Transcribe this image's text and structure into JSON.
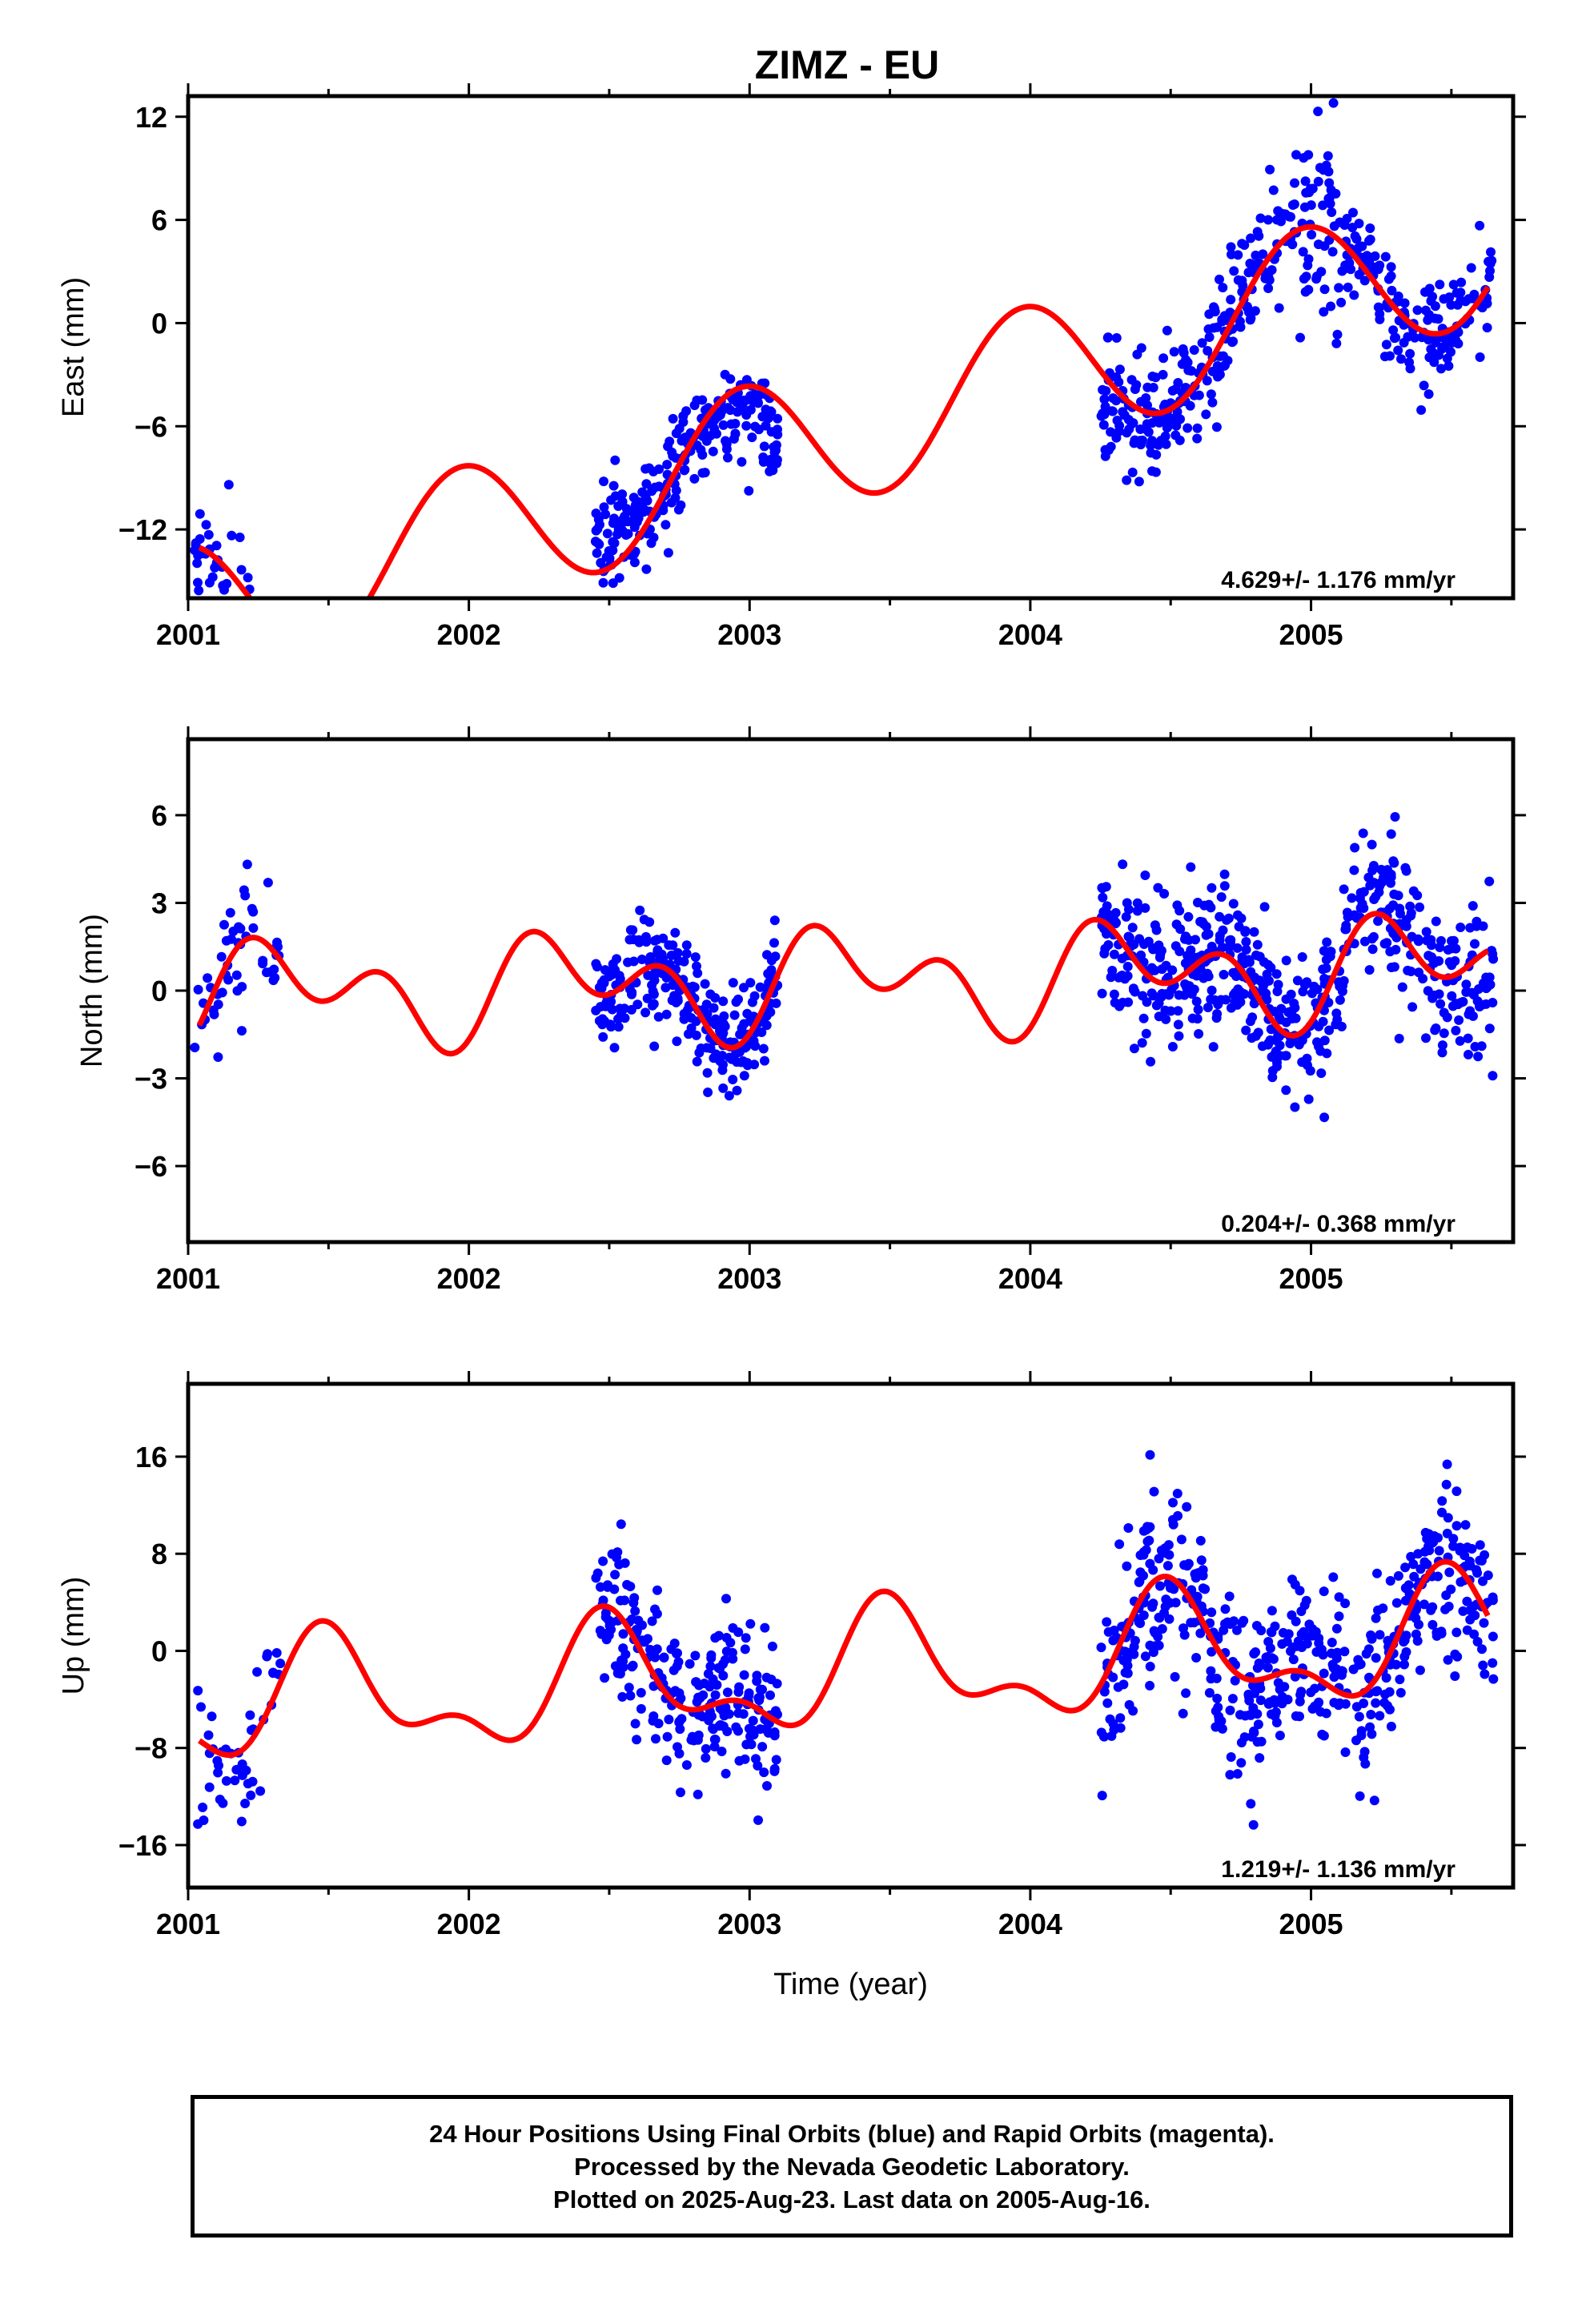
{
  "title": "ZIMZ - EU",
  "footer": {
    "line1": "24 Hour Positions Using Final Orbits (blue) and Rapid Orbits (magenta).",
    "line2": "Processed by the Nevada Geodetic Laboratory.",
    "line3": "Plotted on 2025-Aug-23. Last data on 2005-Aug-16."
  },
  "colors": {
    "data_points": "#0000ff",
    "model_fit": "#ff0000",
    "frame": "#000000"
  },
  "chart_data": [
    {
      "type": "scatter",
      "name": "east",
      "title": "",
      "ylabel": "East (mm)",
      "xlabel": "",
      "xlim": [
        2001.0,
        2005.72
      ],
      "ylim": [
        -16,
        13.2
      ],
      "xticks": [
        2001,
        2002,
        2003,
        2004,
        2005
      ],
      "xtick_labels": [
        "2001",
        "2002",
        "2003",
        "2004",
        "2005"
      ],
      "yticks": [
        -12,
        -6,
        0,
        6,
        12
      ],
      "ytick_labels": [
        "−12",
        "−6",
        "0",
        "6",
        "12"
      ],
      "rate_text": "4.629+/- 1.176 mm/yr",
      "data_segments": [
        {
          "x0": 2001.02,
          "x1": 2001.14,
          "trend": 0,
          "noise": 1.0,
          "n": 28
        },
        {
          "x0": 2001.14,
          "x1": 2001.33,
          "trend": -8,
          "noise": 0.8,
          "n": 14
        },
        {
          "x0": 2002.45,
          "x1": 2003.1,
          "trend": -4.5,
          "noise": 1.3,
          "n": 250
        },
        {
          "x0": 2004.25,
          "x1": 2004.95,
          "trend": 2.5,
          "noise": 1.7,
          "n": 240
        },
        {
          "x0": 2004.95,
          "x1": 2005.1,
          "trend": 0,
          "noise": 3.2,
          "n": 50
        },
        {
          "x0": 2005.1,
          "x1": 2005.65,
          "trend": 0,
          "noise": 1.6,
          "n": 170
        }
      ],
      "model": {
        "ref": 2003.0,
        "offset": -7.8,
        "rate": 4.629,
        "a1": 4.2,
        "p1": 1.75,
        "a2": 0.0,
        "p2": 0.0
      }
    },
    {
      "type": "scatter",
      "name": "north",
      "title": "",
      "ylabel": "North (mm)",
      "xlabel": "",
      "xlim": [
        2001.0,
        2005.72
      ],
      "ylim": [
        -8.6,
        8.6
      ],
      "xticks": [
        2001,
        2002,
        2003,
        2004,
        2005
      ],
      "xtick_labels": [
        "2001",
        "2002",
        "2003",
        "2004",
        "2005"
      ],
      "yticks": [
        -6,
        -3,
        0,
        3,
        6
      ],
      "ytick_labels": [
        "−6",
        "−3",
        "0",
        "3",
        "6"
      ],
      "rate_text": "0.204+/- 0.368 mm/yr",
      "data_segments": [
        {
          "x0": 2001.02,
          "x1": 2001.33,
          "trend": 0,
          "noise": 1.0,
          "n": 50
        },
        {
          "x0": 2002.45,
          "x1": 2003.1,
          "trend": 0,
          "noise": 1.0,
          "n": 260
        },
        {
          "x0": 2004.25,
          "x1": 2005.15,
          "trend": 0,
          "noise": 1.3,
          "n": 380
        },
        {
          "x0": 2005.15,
          "x1": 2005.65,
          "trend": -2.5,
          "noise": 1.3,
          "n": 180
        }
      ],
      "model": {
        "ref": 2003.0,
        "offset": 0.25,
        "rate": 0.204,
        "a1": 1.15,
        "p1": 5.6,
        "a2": 1.2,
        "p2": 5.3
      }
    },
    {
      "type": "scatter",
      "name": "up",
      "title": "",
      "ylabel": "Up (mm)",
      "xlabel": "Time (year)",
      "xlim": [
        2001.0,
        2005.72
      ],
      "ylim": [
        -19.5,
        22
      ],
      "xticks": [
        2001,
        2002,
        2003,
        2004,
        2005
      ],
      "xtick_labels": [
        "2001",
        "2002",
        "2003",
        "2004",
        "2005"
      ],
      "yticks": [
        -16,
        -8,
        0,
        8,
        16
      ],
      "ytick_labels": [
        "−16",
        "−8",
        "0",
        "8",
        "16"
      ],
      "rate_text": "1.219+/- 1.136 mm/yr",
      "data_segments": [
        {
          "x0": 2001.02,
          "x1": 2001.33,
          "trend": 0,
          "noise": 3.5,
          "n": 45
        },
        {
          "x0": 2002.45,
          "x1": 2003.1,
          "trend": 0,
          "noise": 3.2,
          "n": 250
        },
        {
          "x0": 2004.25,
          "x1": 2005.65,
          "trend": 0,
          "noise": 3.6,
          "n": 520
        }
      ],
      "model": {
        "ref": 2003.0,
        "offset": -2.2,
        "rate": 1.219,
        "a1": 4.3,
        "p1": 4.7,
        "a2": 2.3,
        "p2": 2.0
      }
    }
  ]
}
